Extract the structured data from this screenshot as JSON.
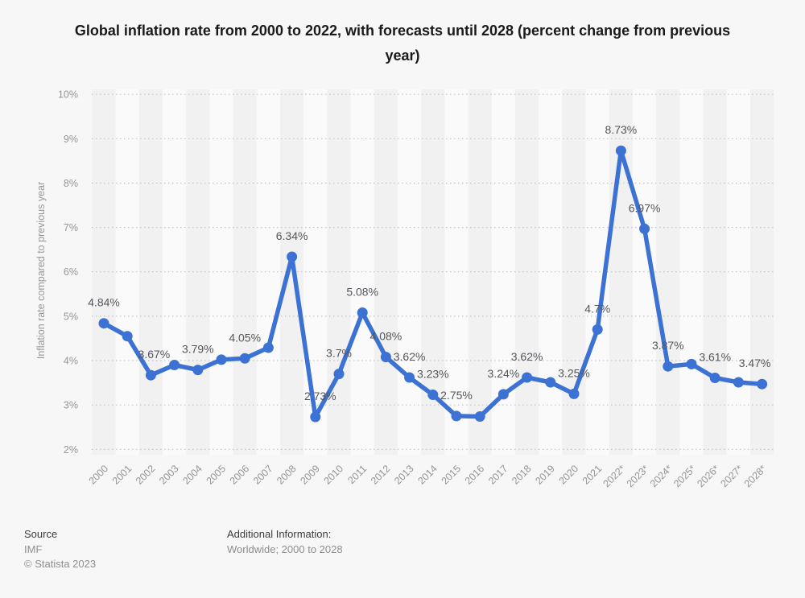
{
  "title": "Global inflation rate from 2000 to 2022, with forecasts until 2028 (percent change from previous year)",
  "chart_data": {
    "type": "line",
    "title": "Global inflation rate from 2000 to 2022, with forecasts until 2028 (percent change from previous year)",
    "x": [
      "2000",
      "2001",
      "2002",
      "2003",
      "2004",
      "2005",
      "2006",
      "2007",
      "2008",
      "2009",
      "2010",
      "2011",
      "2012",
      "2013",
      "2014",
      "2015",
      "2016",
      "2017",
      "2018",
      "2019",
      "2020",
      "2021",
      "2022*",
      "2023*",
      "2024*",
      "2025*",
      "2026*",
      "2027*",
      "2028*"
    ],
    "series": [
      {
        "name": "Inflation rate compared to previous year",
        "values": [
          4.84,
          4.55,
          3.67,
          3.9,
          3.79,
          4.02,
          4.05,
          4.29,
          6.34,
          2.73,
          3.7,
          5.08,
          4.08,
          3.62,
          3.23,
          2.75,
          2.74,
          3.24,
          3.62,
          3.51,
          3.25,
          4.7,
          8.73,
          6.97,
          3.87,
          3.92,
          3.61,
          3.51,
          3.47
        ]
      }
    ],
    "point_labels": [
      "4.84%",
      null,
      "3.67%",
      null,
      "3.79%",
      null,
      "4.05%",
      null,
      "6.34%",
      "2.73%",
      "3.7%",
      "5.08%",
      "4.08%",
      "3.62%",
      "3.23%",
      "2.75%",
      null,
      "3.24%",
      "3.62%",
      null,
      "3.25%",
      "4.7%",
      "8.73%",
      "6.97%",
      "3.87%",
      null,
      "3.61%",
      null,
      "3.47%"
    ],
    "xlabel": "",
    "ylabel": "Inflation rate compared to previous year",
    "ylim": [
      2,
      10
    ],
    "yticks": [
      "2%",
      "3%",
      "4%",
      "5%",
      "6%",
      "7%",
      "8%",
      "9%",
      "10%"
    ],
    "grid": "horizontal-dotted",
    "legend": "none",
    "marker": "circle",
    "colors": {
      "line": "#3b72d3",
      "point_label": "#55565b",
      "tick_label": "#95959a",
      "axis_title": "#97979b",
      "grid": "#c3c3c6",
      "band_even": "#f1f1f2",
      "band_odd": "#fafafa",
      "background": "#f7f7f7",
      "title_text": "#1a1a1a"
    }
  },
  "footer": {
    "source_label": "Source",
    "source_value": "IMF",
    "copyright": "© Statista 2023",
    "additional_label": "Additional Information:",
    "additional_value": "Worldwide; 2000 to 2028"
  }
}
